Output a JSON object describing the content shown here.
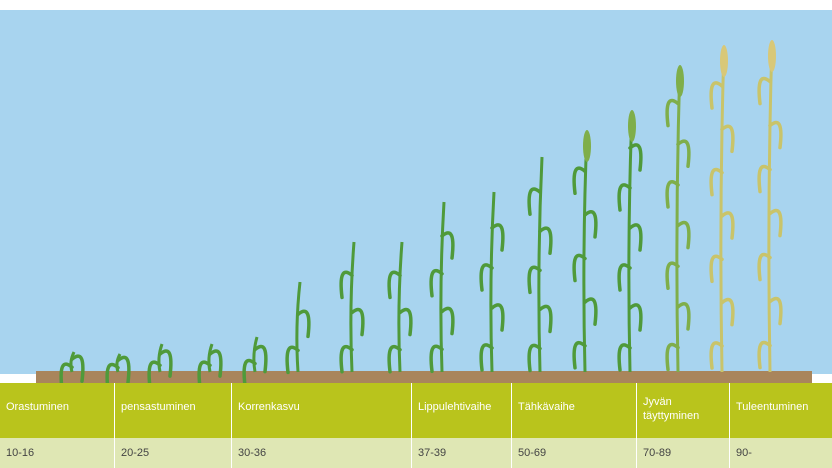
{
  "table": {
    "header": [
      "Orastuminen",
      "pensastuminen",
      "Korrenkasvu",
      "Lippulehtivaihe",
      "Tähkävaihe",
      "Jyvän täyttyminen",
      "Tuleentuminen"
    ],
    "rows": [
      [
        "10-16",
        "20-25",
        "30-36",
        "37-39",
        "50-69",
        "70-89",
        "90-"
      ]
    ]
  }
}
